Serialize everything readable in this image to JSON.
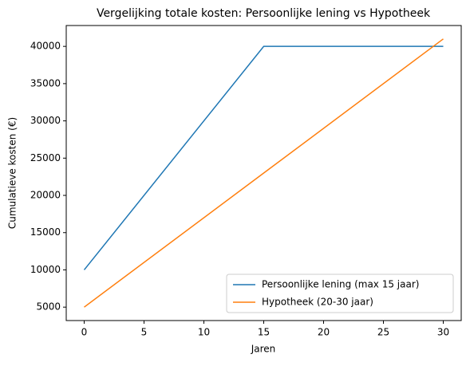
{
  "chart_data": {
    "type": "line",
    "title": "Vergelijking totale kosten: Persoonlijke lening vs Hypotheek",
    "xlabel": "Jaren",
    "ylabel": "Cumulatieve kosten (€)",
    "x": [
      0,
      15,
      30
    ],
    "series": [
      {
        "name": "Persoonlijke lening (max 15 jaar)",
        "color": "#1f77b4",
        "values": [
          10000,
          40000,
          40000
        ]
      },
      {
        "name": "Hypotheek (20-30 jaar)",
        "color": "#ff7f0e",
        "values": [
          5000,
          23000,
          41000
        ]
      }
    ],
    "xlim": [
      -1.5,
      31.5
    ],
    "xticks": [
      0,
      5,
      10,
      15,
      20,
      25,
      30
    ],
    "ylim": [
      3200,
      42800
    ],
    "yticks": [
      5000,
      10000,
      15000,
      20000,
      25000,
      30000,
      35000,
      40000
    ],
    "grid": false,
    "legend": "lower right"
  }
}
